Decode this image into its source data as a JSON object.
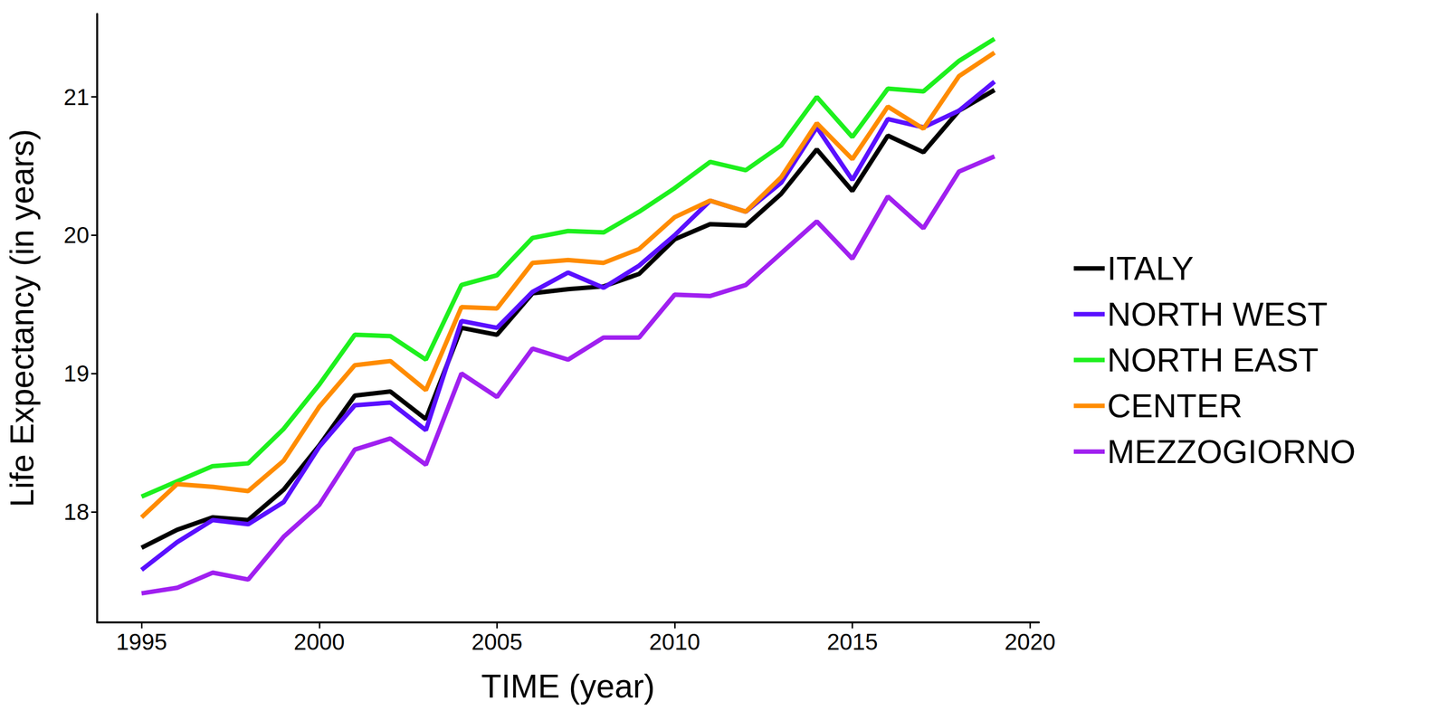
{
  "chart_data": {
    "type": "line",
    "x_label": "TIME (year)",
    "y_label": "Life Expectancy (in years)",
    "x": [
      1995,
      1996,
      1997,
      1998,
      1999,
      2000,
      2001,
      2002,
      2003,
      2004,
      2005,
      2006,
      2007,
      2008,
      2009,
      2010,
      2011,
      2012,
      2013,
      2014,
      2015,
      2016,
      2017,
      2018,
      2019
    ],
    "series": [
      {
        "name": "ITALY",
        "color": "#000000",
        "values": [
          17.74,
          17.87,
          17.96,
          17.94,
          18.16,
          18.48,
          18.84,
          18.87,
          18.67,
          19.33,
          19.28,
          19.58,
          19.61,
          19.63,
          19.72,
          19.97,
          20.08,
          20.07,
          20.3,
          20.62,
          20.32,
          20.72,
          20.6,
          20.9,
          21.05
        ]
      },
      {
        "name": "NORTH WEST",
        "color": "#5a10ff",
        "values": [
          17.58,
          17.78,
          17.94,
          17.91,
          18.07,
          18.47,
          18.77,
          18.79,
          18.59,
          19.38,
          19.33,
          19.59,
          19.73,
          19.62,
          19.78,
          20.0,
          20.25,
          20.17,
          20.38,
          20.78,
          20.4,
          20.84,
          20.78,
          20.9,
          21.11
        ]
      },
      {
        "name": "NORTH EAST",
        "color": "#1ef01e",
        "values": [
          18.11,
          18.22,
          18.33,
          18.35,
          18.6,
          18.92,
          19.28,
          19.27,
          19.1,
          19.64,
          19.71,
          19.98,
          20.03,
          20.02,
          20.17,
          20.34,
          20.53,
          20.47,
          20.65,
          21.0,
          20.71,
          21.06,
          21.04,
          21.26,
          21.42
        ]
      },
      {
        "name": "CENTER",
        "color": "#ff8c00",
        "values": [
          17.96,
          18.2,
          18.18,
          18.15,
          18.37,
          18.76,
          19.06,
          19.09,
          18.88,
          19.48,
          19.47,
          19.8,
          19.82,
          19.8,
          19.9,
          20.13,
          20.25,
          20.17,
          20.42,
          20.81,
          20.55,
          20.93,
          20.77,
          21.15,
          21.32
        ]
      },
      {
        "name": "MEZZOGIORNO",
        "color": "#a020f0",
        "values": [
          17.41,
          17.45,
          17.56,
          17.51,
          17.82,
          18.05,
          18.45,
          18.53,
          18.34,
          19.0,
          18.83,
          19.18,
          19.1,
          19.26,
          19.26,
          19.57,
          19.56,
          19.64,
          19.87,
          20.1,
          19.83,
          20.28,
          20.05,
          20.46,
          20.57
        ]
      }
    ],
    "xlim": [
      1993.75,
      2020.25
    ],
    "xticks": [
      1995,
      2000,
      2005,
      2010,
      2015,
      2020
    ],
    "ylim": [
      17.2,
      21.6
    ],
    "yticks": [
      18,
      19,
      20,
      21
    ],
    "grid": false,
    "legend": "right"
  }
}
